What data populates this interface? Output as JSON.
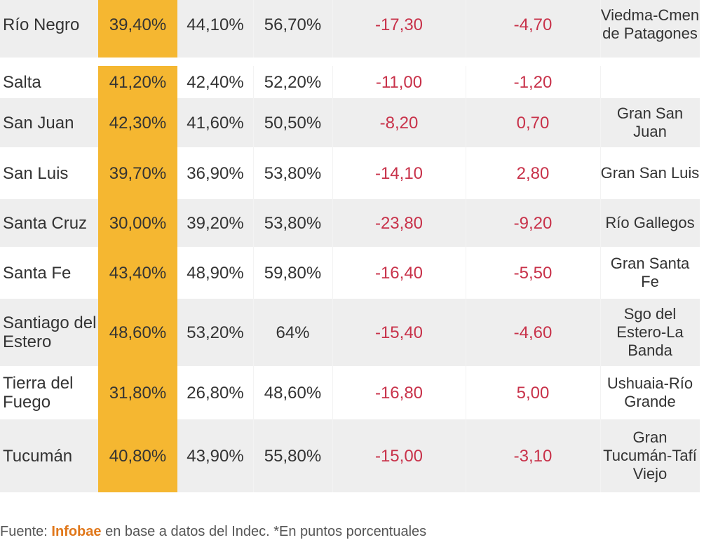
{
  "chart_data": {
    "type": "table",
    "rows": [
      {
        "province": "Río Negro",
        "v1": "39,40%",
        "v2": "44,10%",
        "v3": "56,70%",
        "d1": "-17,30",
        "d2": "-4,70",
        "city": "Viedma-Cmen de Patagones"
      },
      {
        "province": "Salta",
        "v1": "41,20%",
        "v2": "42,40%",
        "v3": "52,20%",
        "d1": "-11,00",
        "d2": "-1,20",
        "city": ""
      },
      {
        "province": "San Juan",
        "v1": "42,30%",
        "v2": "41,60%",
        "v3": "50,50%",
        "d1": "-8,20",
        "d2": "0,70",
        "city": "Gran San Juan"
      },
      {
        "province": "San Luis",
        "v1": "39,70%",
        "v2": "36,90%",
        "v3": "53,80%",
        "d1": "-14,10",
        "d2": "2,80",
        "city": "Gran San Luis"
      },
      {
        "province": "Santa Cruz",
        "v1": "30,00%",
        "v2": "39,20%",
        "v3": "53,80%",
        "d1": "-23,80",
        "d2": "-9,20",
        "city": "Río Gallegos"
      },
      {
        "province": "Santa Fe",
        "v1": "43,40%",
        "v2": "48,90%",
        "v3": "59,80%",
        "d1": "-16,40",
        "d2": "-5,50",
        "city": "Gran Santa Fe"
      },
      {
        "province": "Santiago del Estero",
        "v1": "48,60%",
        "v2": "53,20%",
        "v3": "64%",
        "d1": "-15,40",
        "d2": "-4,60",
        "city": "Sgo del Estero-La Banda"
      },
      {
        "province": "Tierra del Fuego",
        "v1": "31,80%",
        "v2": "26,80%",
        "v3": "48,60%",
        "d1": "-16,80",
        "d2": "5,00",
        "city": "Ushuaia-Río Grande"
      },
      {
        "province": "Tucumán",
        "v1": "40,80%",
        "v2": "43,90%",
        "v3": "55,80%",
        "d1": "-15,00",
        "d2": "-3,10",
        "city": "Gran Tucumán-Tafí Viejo"
      }
    ]
  },
  "footer": {
    "prefix": "Fuente: ",
    "brand": "Infobae",
    "suffix": " en base a datos del Indec. *En puntos porcentuales"
  },
  "colors": {
    "highlight": "#f5b731",
    "negative": "#c8324a",
    "brand": "#e0771a",
    "shade": "#eeeeee"
  }
}
